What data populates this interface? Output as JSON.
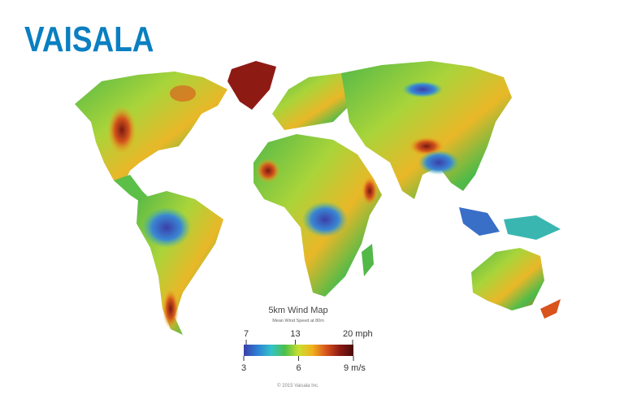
{
  "logo": "VAISALA",
  "legend": {
    "title": "5km Wind Map",
    "subtitle": "Mean Wind Speed at 80m",
    "mph_lim": [
      6.7,
      20.1
    ],
    "mph_ticks": [
      7,
      13,
      {
        "value": 20,
        "label": "20 mph"
      }
    ],
    "ms_lim": [
      3,
      9
    ],
    "ms_ticks": [
      3,
      6,
      {
        "value": 9,
        "label": "9 m/s"
      }
    ],
    "colors": [
      "#3b3fa8",
      "#2f7fd6",
      "#33c2c9",
      "#4cc04a",
      "#c9df2f",
      "#f0b21e",
      "#d8541c",
      "#8e1a14",
      "#4a0b0b"
    ]
  },
  "copyright": "© 2015 Vaisala Inc."
}
